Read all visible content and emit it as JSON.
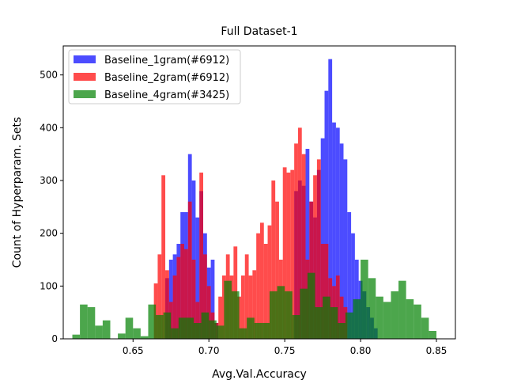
{
  "chart_data": {
    "type": "bar",
    "title": "Full Dataset-1",
    "xlabel": "Avg.Val.Accuracy",
    "ylabel": "Count of Hyperparam. Sets",
    "xlim": [
      0.604,
      0.8625
    ],
    "ylim": [
      0,
      555
    ],
    "xticks": [
      0.65,
      0.7,
      0.75,
      0.8,
      0.85
    ],
    "xtick_labels": [
      "0.65",
      "0.70",
      "0.75",
      "0.80",
      "0.85"
    ],
    "yticks": [
      0,
      100,
      200,
      300,
      400,
      500
    ],
    "ytick_labels": [
      "0",
      "100",
      "200",
      "300",
      "400",
      "500"
    ],
    "grid": false,
    "legend_position": "top-left",
    "series": [
      {
        "name": "Baseline_1gram(#6912)",
        "color": "#0000ff",
        "alpha": 0.7,
        "x": [
          0.6725,
          0.675,
          0.6775,
          0.68,
          0.6825,
          0.685,
          0.6875,
          0.69,
          0.6925,
          0.695,
          0.6975,
          0.7,
          0.7025,
          0.705,
          0.7575,
          0.76,
          0.7625,
          0.765,
          0.7675,
          0.77,
          0.7725,
          0.775,
          0.7775,
          0.78,
          0.7825,
          0.785,
          0.7875,
          0.79,
          0.7925,
          0.795,
          0.7975,
          0.8,
          0.8025,
          0.805,
          0.8075,
          0.81
        ],
        "values": [
          115,
          150,
          160,
          180,
          240,
          240,
          350,
          300,
          230,
          280,
          200,
          135,
          150,
          30,
          280,
          300,
          290,
          360,
          260,
          230,
          320,
          380,
          470,
          530,
          410,
          400,
          370,
          340,
          240,
          200,
          150,
          110,
          90,
          60,
          40,
          20
        ]
      },
      {
        "name": "Baseline_2gram(#6912)",
        "color": "#ff0000",
        "alpha": 0.7,
        "x": [
          0.665,
          0.6675,
          0.67,
          0.6725,
          0.675,
          0.6775,
          0.68,
          0.6825,
          0.685,
          0.6875,
          0.69,
          0.6925,
          0.695,
          0.6975,
          0.7,
          0.7025,
          0.705,
          0.7075,
          0.71,
          0.7125,
          0.715,
          0.7175,
          0.72,
          0.7225,
          0.725,
          0.7275,
          0.73,
          0.7325,
          0.735,
          0.7375,
          0.74,
          0.7425,
          0.745,
          0.7475,
          0.75,
          0.7525,
          0.755,
          0.7575,
          0.76,
          0.7625,
          0.765,
          0.7675,
          0.77,
          0.7725,
          0.775,
          0.7775,
          0.78,
          0.7825,
          0.785,
          0.7875,
          0.79
        ],
        "values": [
          105,
          160,
          310,
          130,
          70,
          120,
          155,
          180,
          170,
          260,
          150,
          70,
          315,
          160,
          100,
          50,
          30,
          80,
          120,
          160,
          120,
          175,
          80,
          120,
          160,
          120,
          130,
          200,
          220,
          180,
          215,
          300,
          260,
          150,
          325,
          315,
          320,
          370,
          400,
          350,
          150,
          260,
          310,
          340,
          180,
          180,
          115,
          100,
          120,
          80,
          60
        ]
      },
      {
        "name": "Baseline_4gram(#3425)",
        "color": "#008000",
        "alpha": 0.7,
        "x": [
          0.6125,
          0.6175,
          0.6225,
          0.6275,
          0.6325,
          0.6375,
          0.6425,
          0.6475,
          0.6525,
          0.6575,
          0.6625,
          0.6675,
          0.6725,
          0.6775,
          0.6825,
          0.6875,
          0.6925,
          0.6975,
          0.7025,
          0.7075,
          0.7125,
          0.7175,
          0.7225,
          0.7275,
          0.7325,
          0.7375,
          0.7425,
          0.7475,
          0.7525,
          0.7575,
          0.7625,
          0.7675,
          0.7725,
          0.7775,
          0.7825,
          0.7875,
          0.7925,
          0.7975,
          0.8025,
          0.8075,
          0.8125,
          0.8175,
          0.8225,
          0.8275,
          0.8325,
          0.8375,
          0.8425,
          0.8475
        ],
        "values": [
          8,
          65,
          60,
          25,
          35,
          0,
          10,
          40,
          20,
          5,
          65,
          45,
          50,
          20,
          40,
          40,
          30,
          50,
          35,
          25,
          110,
          90,
          20,
          40,
          30,
          30,
          90,
          100,
          90,
          45,
          95,
          125,
          60,
          80,
          60,
          30,
          50,
          75,
          150,
          115,
          80,
          70,
          90,
          110,
          75,
          65,
          40,
          15
        ]
      }
    ]
  }
}
